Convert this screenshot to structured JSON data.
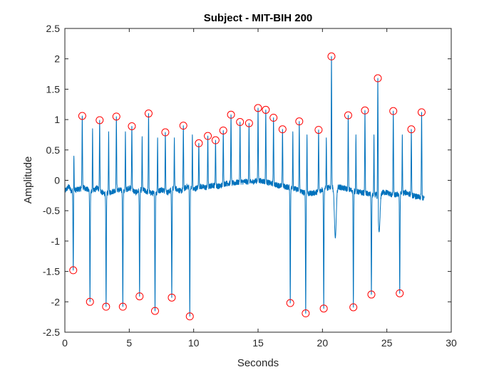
{
  "chart_data": {
    "type": "line",
    "title": "Subject - MIT-BIH 200",
    "xlabel": "Seconds",
    "ylabel": "Amplitude",
    "xlim": [
      0,
      30
    ],
    "ylim": [
      -2.5,
      2.5
    ],
    "xticks": [
      0,
      5,
      10,
      15,
      20,
      25,
      30
    ],
    "yticks": [
      -2.5,
      -2,
      -1.5,
      -1,
      -0.5,
      0,
      0.5,
      1,
      1.5,
      2,
      2.5
    ],
    "grid": false,
    "colors": {
      "signal": "#0072bd",
      "markers": "#ff0000",
      "axes": "#262626",
      "text": "#262626"
    },
    "signal": {
      "x_end": 27.9,
      "baseline": [
        [
          0.0,
          -0.18
        ],
        [
          0.3,
          -0.1
        ],
        [
          0.5,
          -0.18
        ],
        [
          1.0,
          -0.15
        ],
        [
          1.5,
          -0.12
        ],
        [
          2.1,
          -0.2
        ],
        [
          2.5,
          -0.12
        ],
        [
          3.0,
          -0.22
        ],
        [
          3.5,
          -0.2
        ],
        [
          4.1,
          -0.15
        ],
        [
          4.6,
          -0.18
        ],
        [
          5.0,
          -0.12
        ],
        [
          5.5,
          -0.2
        ],
        [
          6.0,
          -0.15
        ],
        [
          6.5,
          -0.2
        ],
        [
          7.0,
          -0.22
        ],
        [
          7.5,
          -0.15
        ],
        [
          8.0,
          -0.2
        ],
        [
          8.5,
          -0.12
        ],
        [
          9.0,
          -0.18
        ],
        [
          9.5,
          -0.1
        ],
        [
          10.0,
          -0.15
        ],
        [
          10.5,
          -0.1
        ],
        [
          11.0,
          -0.12
        ],
        [
          11.5,
          -0.08
        ],
        [
          12.0,
          -0.1
        ],
        [
          12.5,
          -0.05
        ],
        [
          13.0,
          -0.05
        ],
        [
          13.5,
          -0.03
        ],
        [
          14.0,
          -0.02
        ],
        [
          14.5,
          -0.03
        ],
        [
          15.0,
          0.0
        ],
        [
          15.5,
          -0.02
        ],
        [
          16.0,
          -0.05
        ],
        [
          16.5,
          -0.08
        ],
        [
          17.0,
          -0.1
        ],
        [
          17.5,
          -0.12
        ],
        [
          18.0,
          -0.15
        ],
        [
          18.5,
          -0.2
        ],
        [
          19.0,
          -0.22
        ],
        [
          19.5,
          -0.2
        ],
        [
          20.0,
          -0.15
        ],
        [
          20.5,
          -0.12
        ],
        [
          21.0,
          -0.1
        ],
        [
          21.5,
          -0.12
        ],
        [
          22.0,
          -0.15
        ],
        [
          22.5,
          -0.18
        ],
        [
          23.0,
          -0.2
        ],
        [
          23.5,
          -0.22
        ],
        [
          24.0,
          -0.25
        ],
        [
          24.5,
          -0.2
        ],
        [
          25.0,
          -0.2
        ],
        [
          25.5,
          -0.25
        ],
        [
          26.0,
          -0.22
        ],
        [
          26.5,
          -0.2
        ],
        [
          27.0,
          -0.25
        ],
        [
          27.5,
          -0.28
        ],
        [
          27.9,
          -0.3
        ]
      ],
      "extra_spikes": [
        [
          0.7,
          0.4
        ],
        [
          2.15,
          0.85
        ],
        [
          3.4,
          0.8
        ],
        [
          4.7,
          0.8
        ],
        [
          6.0,
          0.72
        ],
        [
          7.2,
          0.7
        ],
        [
          8.5,
          0.7
        ],
        [
          9.9,
          0.75
        ],
        [
          17.7,
          0.8
        ],
        [
          18.8,
          0.75
        ],
        [
          20.3,
          0.7
        ],
        [
          22.6,
          0.75
        ],
        [
          24.0,
          0.75
        ],
        [
          26.2,
          0.75
        ]
      ],
      "deep_dips": [
        [
          21.0,
          -0.95
        ],
        [
          24.4,
          -0.85
        ]
      ]
    },
    "peaks": [
      {
        "x": 1.35,
        "y": 1.06
      },
      {
        "x": 2.7,
        "y": 0.99
      },
      {
        "x": 4.0,
        "y": 1.05
      },
      {
        "x": 5.2,
        "y": 0.89
      },
      {
        "x": 6.5,
        "y": 1.1
      },
      {
        "x": 7.8,
        "y": 0.79
      },
      {
        "x": 9.2,
        "y": 0.9
      },
      {
        "x": 10.4,
        "y": 0.61
      },
      {
        "x": 11.1,
        "y": 0.73
      },
      {
        "x": 11.7,
        "y": 0.66
      },
      {
        "x": 12.3,
        "y": 0.82
      },
      {
        "x": 12.9,
        "y": 1.08
      },
      {
        "x": 13.6,
        "y": 0.96
      },
      {
        "x": 14.3,
        "y": 0.94
      },
      {
        "x": 15.0,
        "y": 1.19
      },
      {
        "x": 15.6,
        "y": 1.16
      },
      {
        "x": 16.2,
        "y": 1.03
      },
      {
        "x": 16.9,
        "y": 0.84
      },
      {
        "x": 18.2,
        "y": 0.97
      },
      {
        "x": 19.7,
        "y": 0.83
      },
      {
        "x": 20.7,
        "y": 2.04
      },
      {
        "x": 22.0,
        "y": 1.07
      },
      {
        "x": 23.3,
        "y": 1.15
      },
      {
        "x": 24.3,
        "y": 1.68
      },
      {
        "x": 25.5,
        "y": 1.14
      },
      {
        "x": 26.9,
        "y": 0.84
      },
      {
        "x": 27.7,
        "y": 1.12
      }
    ],
    "troughs": [
      {
        "x": 0.65,
        "y": -1.48
      },
      {
        "x": 1.95,
        "y": -2.0
      },
      {
        "x": 3.2,
        "y": -2.08
      },
      {
        "x": 4.5,
        "y": -2.08
      },
      {
        "x": 5.8,
        "y": -1.91
      },
      {
        "x": 7.0,
        "y": -2.15
      },
      {
        "x": 8.3,
        "y": -1.93
      },
      {
        "x": 9.7,
        "y": -2.24
      },
      {
        "x": 17.5,
        "y": -2.02
      },
      {
        "x": 18.7,
        "y": -2.19
      },
      {
        "x": 20.1,
        "y": -2.11
      },
      {
        "x": 22.4,
        "y": -2.09
      },
      {
        "x": 23.8,
        "y": -1.88
      },
      {
        "x": 26.0,
        "y": -1.86
      }
    ]
  }
}
